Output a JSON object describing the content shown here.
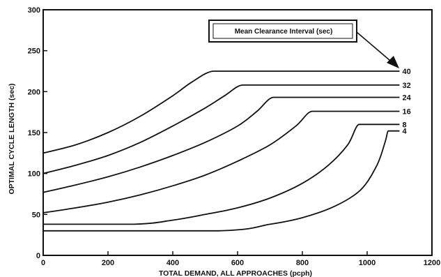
{
  "chart_data": {
    "type": "line",
    "title": "",
    "xlabel": "TOTAL DEMAND, ALL APPROACHES (pcph)",
    "ylabel": "OPTIMAL CYCLE LENGTH (sec)",
    "xlim": [
      0,
      1200
    ],
    "ylim": [
      0,
      300
    ],
    "x_ticks": [
      "0",
      "200",
      "400",
      "600",
      "800",
      "1000",
      "1200"
    ],
    "y_ticks": [
      "0",
      "50",
      "100",
      "150",
      "200",
      "250",
      "300"
    ],
    "grid": false,
    "legend_title": "Mean Clearance Interval  (sec)",
    "series": [
      {
        "name": "40",
        "label": "40",
        "points": [
          [
            0,
            125
          ],
          [
            100,
            135
          ],
          [
            200,
            150
          ],
          [
            300,
            170
          ],
          [
            400,
            195
          ],
          [
            460,
            212
          ],
          [
            525,
            225
          ],
          [
            1100,
            225
          ]
        ]
      },
      {
        "name": "32",
        "label": "32",
        "points": [
          [
            0,
            100
          ],
          [
            100,
            110
          ],
          [
            200,
            122
          ],
          [
            300,
            138
          ],
          [
            400,
            158
          ],
          [
            500,
            180
          ],
          [
            560,
            195
          ],
          [
            615,
            208
          ],
          [
            1100,
            208
          ]
        ]
      },
      {
        "name": "24",
        "label": "24",
        "points": [
          [
            0,
            77
          ],
          [
            100,
            86
          ],
          [
            200,
            96
          ],
          [
            300,
            108
          ],
          [
            400,
            122
          ],
          [
            500,
            138
          ],
          [
            600,
            158
          ],
          [
            660,
            176
          ],
          [
            710,
            193
          ],
          [
            1100,
            193
          ]
        ]
      },
      {
        "name": "16",
        "label": "16",
        "points": [
          [
            0,
            52
          ],
          [
            100,
            58
          ],
          [
            200,
            65
          ],
          [
            300,
            74
          ],
          [
            400,
            85
          ],
          [
            500,
            98
          ],
          [
            600,
            115
          ],
          [
            700,
            135
          ],
          [
            780,
            158
          ],
          [
            830,
            176
          ],
          [
            1100,
            176
          ]
        ]
      },
      {
        "name": "8",
        "label": "8",
        "points": [
          [
            0,
            38
          ],
          [
            280,
            38
          ],
          [
            400,
            43
          ],
          [
            500,
            50
          ],
          [
            600,
            58
          ],
          [
            700,
            70
          ],
          [
            800,
            88
          ],
          [
            880,
            110
          ],
          [
            940,
            135
          ],
          [
            975,
            160
          ],
          [
            1100,
            160
          ]
        ]
      },
      {
        "name": "4",
        "label": "4",
        "points": [
          [
            0,
            30
          ],
          [
            540,
            30
          ],
          [
            700,
            38
          ],
          [
            800,
            46
          ],
          [
            900,
            60
          ],
          [
            980,
            80
          ],
          [
            1030,
            110
          ],
          [
            1055,
            138
          ],
          [
            1065,
            152
          ],
          [
            1100,
            152
          ]
        ]
      }
    ]
  }
}
